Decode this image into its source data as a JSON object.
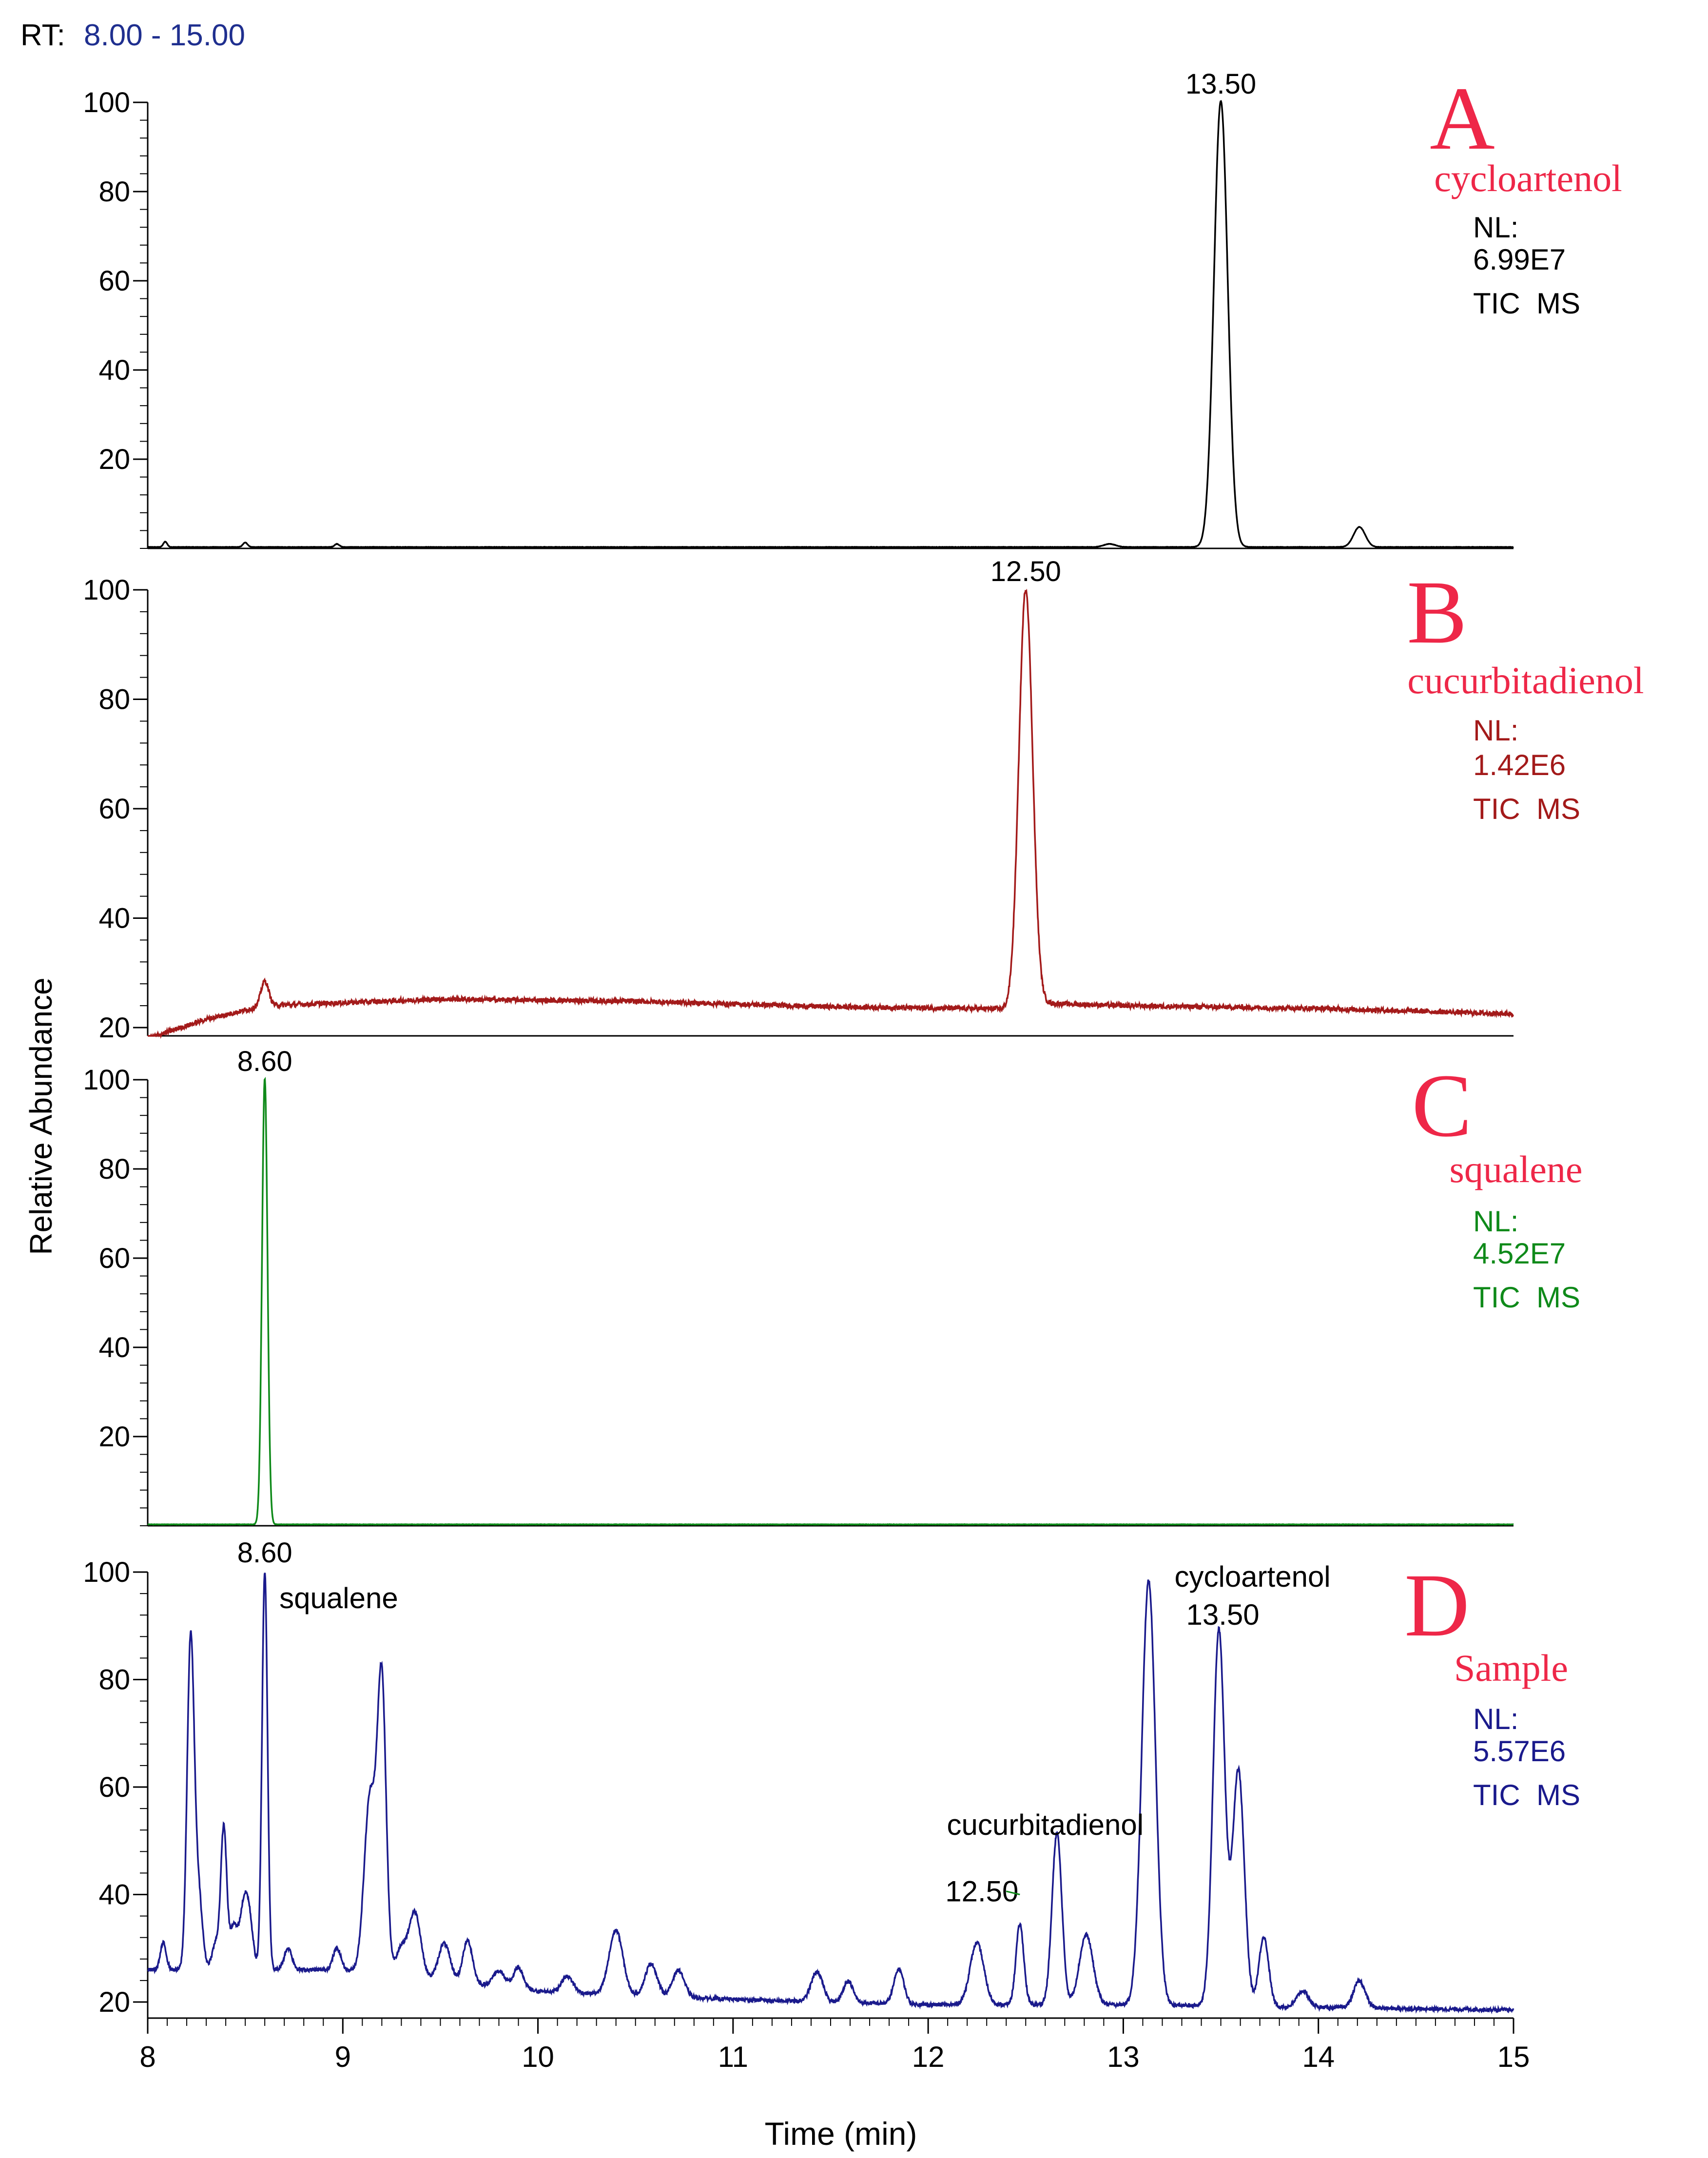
{
  "header": {
    "rt_label": "RT:",
    "rt_range": "8.00 - 15.00"
  },
  "colors": {
    "A": "#000000",
    "B": "#a31a1a",
    "C": "#0f8a1a",
    "D": "#1a1a8c",
    "panel_letter": "#ee2748",
    "rt_range": "#1f2f8f"
  },
  "chart_data": {
    "type": "line",
    "title": "RT: 8.00 - 15.00",
    "xlabel": "Time (min)",
    "ylabel": "Relative Abundance",
    "xlim": [
      8,
      15
    ],
    "x_ticks": [
      8,
      9,
      10,
      11,
      12,
      13,
      14,
      15
    ],
    "panels": [
      {
        "id": "A",
        "letter": "A",
        "compound": "cycloartenol",
        "nl_label": "NL:",
        "nl_value": "6.99E7",
        "scan": "TIC  MS",
        "ylim": [
          0,
          100
        ],
        "y_ticks": [
          20,
          40,
          60,
          80,
          100
        ],
        "baseline": 0.3,
        "peaks": [
          {
            "rt": 13.5,
            "height": 100,
            "width": 0.035
          },
          {
            "rt": 14.21,
            "height": 4.5,
            "width": 0.03
          },
          {
            "rt": 8.09,
            "height": 1.2,
            "width": 0.01
          },
          {
            "rt": 8.5,
            "height": 1.0,
            "width": 0.012
          },
          {
            "rt": 8.97,
            "height": 0.7,
            "width": 0.012
          },
          {
            "rt": 12.93,
            "height": 0.7,
            "width": 0.03
          }
        ],
        "annotations": [
          {
            "label": "13.50",
            "rt": 13.5,
            "value": 100
          }
        ]
      },
      {
        "id": "B",
        "letter": "B",
        "compound": "cucurbitadienol",
        "nl_label": "NL:",
        "nl_value": "1.42E6",
        "scan": "TIC  MS",
        "ylim": [
          18,
          100
        ],
        "y_ticks": [
          20,
          40,
          60,
          80,
          100
        ],
        "baseline_points": [
          [
            8.0,
            18.0
          ],
          [
            8.3,
            21.5
          ],
          [
            8.6,
            24.0
          ],
          [
            9.5,
            25.2
          ],
          [
            10.5,
            24.8
          ],
          [
            11.5,
            23.8
          ],
          [
            12.4,
            23.4
          ],
          [
            12.55,
            24.5
          ],
          [
            13.0,
            24.0
          ],
          [
            14.0,
            23.5
          ],
          [
            15.0,
            22.5
          ]
        ],
        "peaks": [
          {
            "rt": 12.5,
            "height": 76,
            "width": 0.035
          },
          {
            "rt": 8.6,
            "height": 4.5,
            "width": 0.02
          }
        ],
        "annotations": [
          {
            "label": "12.50",
            "rt": 12.5,
            "value": 100
          }
        ]
      },
      {
        "id": "C",
        "letter": "C",
        "compound": "squalene",
        "nl_label": "NL:",
        "nl_value": "4.52E7",
        "scan": "TIC  MS",
        "ylim": [
          0,
          100
        ],
        "y_ticks": [
          20,
          40,
          60,
          80,
          100
        ],
        "baseline": 0.3,
        "peaks": [
          {
            "rt": 8.6,
            "height": 100,
            "width": 0.014
          }
        ],
        "annotations": [
          {
            "label": "8.60",
            "rt": 8.6,
            "value": 100
          }
        ]
      },
      {
        "id": "D",
        "letter": "D",
        "compound": "Sample",
        "nl_label": "NL:",
        "nl_value": "5.57E6",
        "scan": "TIC  MS",
        "ylim": [
          17,
          100
        ],
        "y_ticks": [
          20,
          40,
          60,
          80,
          100
        ],
        "baseline_points": [
          [
            8.0,
            26.0
          ],
          [
            9.0,
            26.0
          ],
          [
            10.0,
            22.0
          ],
          [
            11.0,
            20.5
          ],
          [
            12.0,
            19.5
          ],
          [
            13.0,
            19.5
          ],
          [
            14.0,
            19.0
          ],
          [
            15.0,
            18.5
          ]
        ],
        "peaks": [
          {
            "rt": 8.08,
            "height": 5,
            "width": 0.015
          },
          {
            "rt": 8.22,
            "height": 61,
            "width": 0.018
          },
          {
            "rt": 8.26,
            "height": 14,
            "width": 0.02
          },
          {
            "rt": 8.35,
            "height": 5,
            "width": 0.02
          },
          {
            "rt": 8.39,
            "height": 26,
            "width": 0.015
          },
          {
            "rt": 8.44,
            "height": 8,
            "width": 0.02
          },
          {
            "rt": 8.49,
            "height": 10,
            "width": 0.02
          },
          {
            "rt": 8.52,
            "height": 9,
            "width": 0.02
          },
          {
            "rt": 8.6,
            "height": 74,
            "width": 0.014
          },
          {
            "rt": 8.72,
            "height": 4,
            "width": 0.02
          },
          {
            "rt": 8.97,
            "height": 4,
            "width": 0.02
          },
          {
            "rt": 9.14,
            "height": 33,
            "width": 0.03
          },
          {
            "rt": 9.2,
            "height": 53,
            "width": 0.022
          },
          {
            "rt": 9.3,
            "height": 5,
            "width": 0.03
          },
          {
            "rt": 9.37,
            "height": 12,
            "width": 0.03
          },
          {
            "rt": 9.52,
            "height": 7,
            "width": 0.03
          },
          {
            "rt": 9.64,
            "height": 8,
            "width": 0.025
          },
          {
            "rt": 9.8,
            "height": 3,
            "width": 0.03
          },
          {
            "rt": 9.9,
            "height": 4,
            "width": 0.025
          },
          {
            "rt": 10.15,
            "height": 3,
            "width": 0.03
          },
          {
            "rt": 10.4,
            "height": 12,
            "width": 0.035
          },
          {
            "rt": 10.58,
            "height": 6,
            "width": 0.03
          },
          {
            "rt": 10.72,
            "height": 5,
            "width": 0.03
          },
          {
            "rt": 11.43,
            "height": 5.5,
            "width": 0.03
          },
          {
            "rt": 11.59,
            "height": 4,
            "width": 0.025
          },
          {
            "rt": 11.85,
            "height": 6.5,
            "width": 0.025
          },
          {
            "rt": 12.25,
            "height": 11.5,
            "width": 0.035
          },
          {
            "rt": 12.47,
            "height": 15,
            "width": 0.02
          },
          {
            "rt": 12.66,
            "height": 32,
            "width": 0.025
          },
          {
            "rt": 12.81,
            "height": 13,
            "width": 0.035
          },
          {
            "rt": 13.13,
            "height": 79,
            "width": 0.035
          },
          {
            "rt": 13.49,
            "height": 70,
            "width": 0.03
          },
          {
            "rt": 13.59,
            "height": 44,
            "width": 0.03
          },
          {
            "rt": 13.72,
            "height": 13,
            "width": 0.025
          },
          {
            "rt": 13.92,
            "height": 3,
            "width": 0.03
          },
          {
            "rt": 14.21,
            "height": 5,
            "width": 0.03
          }
        ],
        "annotations": [
          {
            "label": "8.60",
            "rt": 8.6,
            "value": 100
          },
          {
            "label": "squalene",
            "rt": 8.6,
            "value": 96
          },
          {
            "label": "cycloartenol",
            "rt": 13.5,
            "value": 100
          },
          {
            "label": "13.50",
            "rt": 13.5,
            "value": 92
          },
          {
            "label": "cucurbitadienol",
            "rt": 12.5,
            "value": 54
          },
          {
            "label": "12.50",
            "rt": 12.5,
            "value": 42
          }
        ]
      }
    ]
  }
}
